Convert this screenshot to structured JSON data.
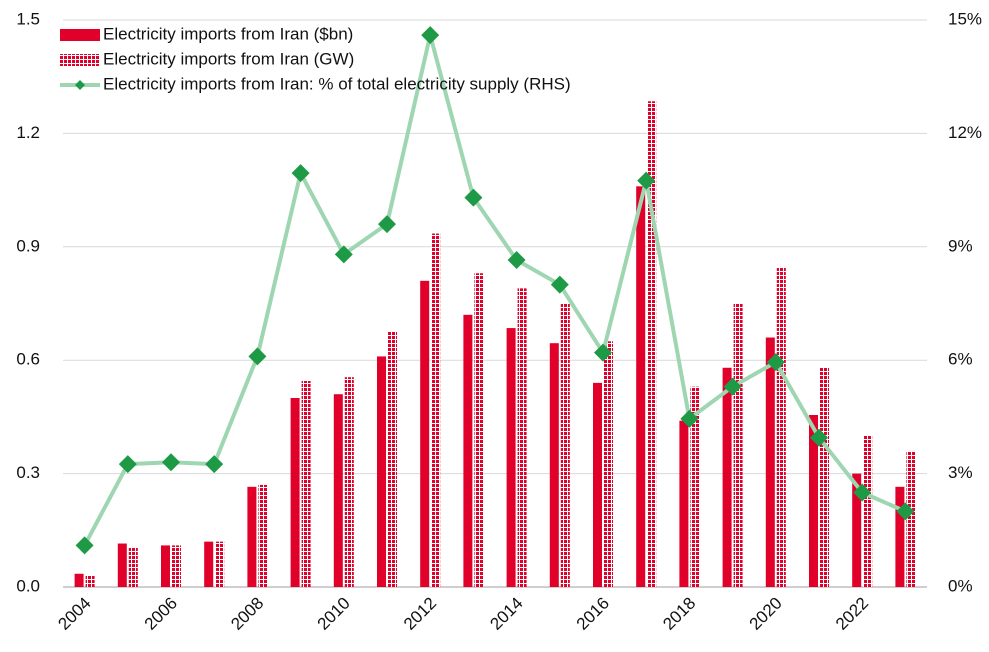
{
  "chart_data": {
    "type": "bar",
    "categories": [
      "2004",
      null,
      "2006",
      null,
      "2008",
      null,
      "2010",
      null,
      "2012",
      null,
      "2014",
      null,
      "2016",
      null,
      "2018",
      null,
      "2020",
      null,
      "2022",
      null
    ],
    "series": [
      {
        "name": "Electricity imports from Iran ($bn)",
        "color": "#e0002a",
        "type": "bar",
        "fill": "solid",
        "values": [
          0.035,
          0.115,
          0.11,
          0.12,
          0.265,
          0.5,
          0.51,
          0.61,
          0.81,
          0.72,
          0.685,
          0.645,
          0.54,
          1.06,
          0.44,
          0.58,
          0.66,
          0.455,
          0.3,
          0.265
        ]
      },
      {
        "name": "Electricity imports from Iran (GW)",
        "color": "#e0002a",
        "type": "bar",
        "fill": "dotted",
        "values": [
          0.03,
          0.105,
          0.11,
          0.12,
          0.27,
          0.545,
          0.555,
          0.675,
          0.935,
          0.83,
          0.79,
          0.75,
          0.65,
          1.285,
          0.53,
          0.75,
          0.845,
          0.58,
          0.4,
          0.36
        ]
      },
      {
        "name": "Electricity imports from Iran: % of total electricity supply (RHS)",
        "color": "#9fd6b2",
        "marker_color": "#1e9a47",
        "type": "line",
        "axis": "y2",
        "values": [
          1.1,
          3.25,
          3.3,
          3.25,
          6.1,
          10.95,
          8.8,
          9.6,
          14.6,
          10.3,
          8.65,
          8.0,
          6.2,
          10.75,
          4.45,
          5.3,
          5.95,
          3.95,
          2.5,
          2.0
        ]
      }
    ],
    "ylim": [
      0,
      1.5
    ],
    "yticks": [
      {
        "value": 0,
        "label": "0.0"
      },
      0.3,
      0.6,
      0.9,
      1.2,
      1.5
    ],
    "y2lim": [
      0,
      15
    ],
    "y2ticks": [
      {
        "value": 0,
        "label": "0%"
      },
      {
        "value": 3,
        "label": "3%"
      },
      {
        "value": 6,
        "label": "6%"
      },
      {
        "value": 9,
        "label": "9%"
      },
      {
        "value": 12,
        "label": "12%"
      },
      {
        "value": 15,
        "label": "15%"
      }
    ],
    "grid": true,
    "legend": "top-left"
  }
}
